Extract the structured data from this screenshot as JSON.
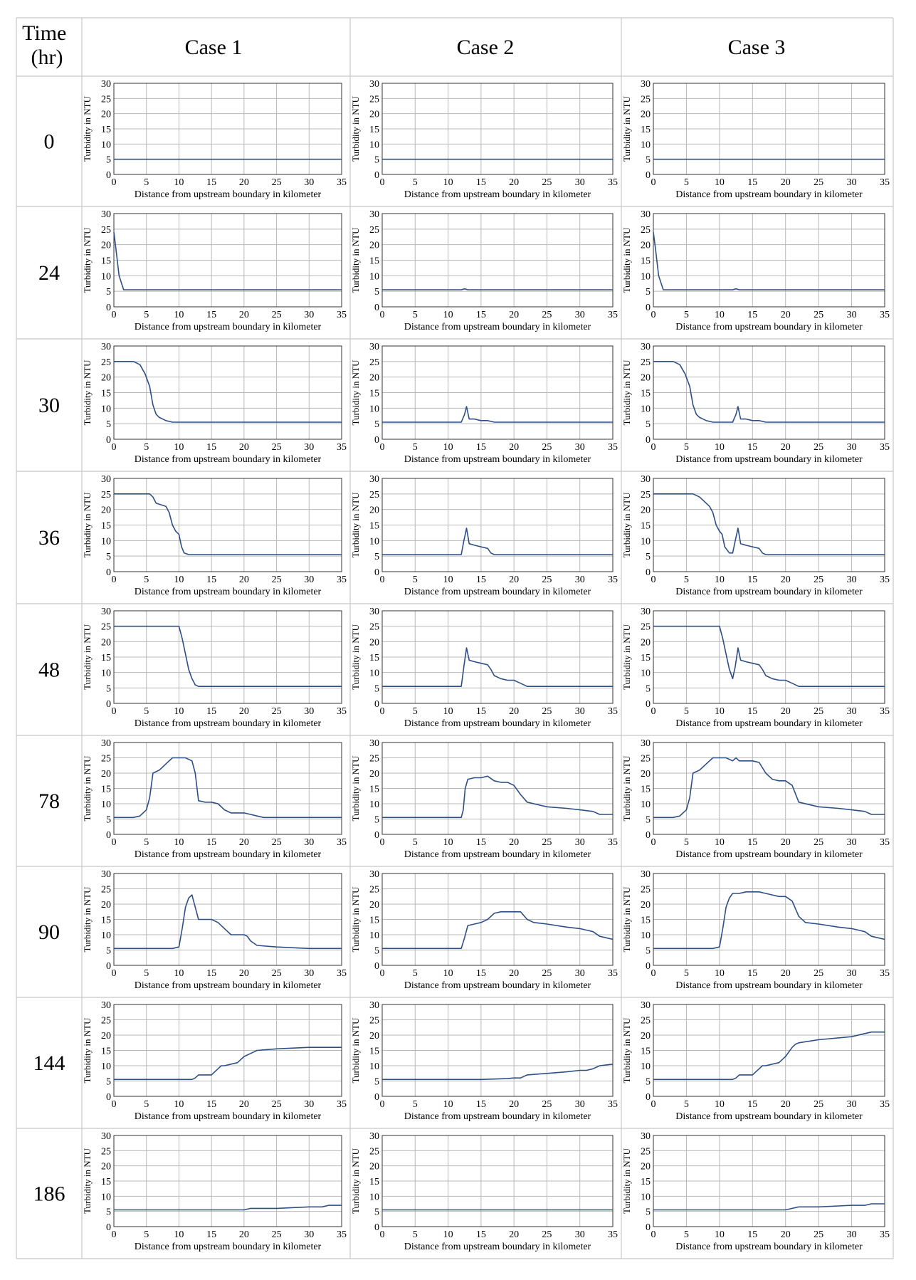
{
  "table": {
    "time_header": "Time (hr)",
    "time_header_lines": [
      "Time",
      "(hr)"
    ],
    "cases": [
      "Case 1",
      "Case 2",
      "Case 3"
    ],
    "times": [
      "0",
      "24",
      "30",
      "36",
      "48",
      "78",
      "90",
      "144",
      "186"
    ]
  },
  "colors": {
    "line": "#2e4f86",
    "grid": "#b8b8b8",
    "axis": "#333333",
    "border": "#c8c8c8"
  },
  "chart_data": {
    "type": "line",
    "xlabel": "Distance from upstream boundary in kilometer",
    "ylabel": "Turbidity in NTU",
    "xlim": [
      0,
      35
    ],
    "ylim": [
      0,
      30
    ],
    "xticks": [
      0,
      5,
      10,
      15,
      20,
      25,
      30,
      35
    ],
    "yticks": [
      0,
      5,
      10,
      15,
      20,
      25,
      30
    ],
    "grid": true,
    "panels": [
      [
        {
          "x": [
            0,
            35
          ],
          "y": [
            5,
            5
          ]
        },
        {
          "x": [
            0,
            0.3,
            0.8,
            1.5,
            35
          ],
          "y": [
            24,
            19,
            10,
            5.5,
            5.5
          ]
        },
        {
          "x": [
            0,
            3,
            4,
            4.8,
            5.5,
            6,
            6.5,
            7,
            8,
            9,
            10,
            35
          ],
          "y": [
            25,
            25,
            24,
            21,
            17,
            11,
            8,
            7,
            6,
            5.5,
            5.5,
            5.5
          ]
        },
        {
          "x": [
            0,
            5.5,
            6,
            6.5,
            8,
            8.5,
            9,
            9.5,
            10,
            10.4,
            10.8,
            11.5,
            35
          ],
          "y": [
            25,
            25,
            24,
            22,
            21,
            19,
            15,
            13,
            12,
            8,
            6,
            5.5,
            5.5
          ]
        },
        {
          "x": [
            0,
            10,
            10.5,
            11,
            11.5,
            12,
            12.5,
            13,
            35
          ],
          "y": [
            25,
            25,
            21,
            16,
            11,
            8,
            6,
            5.5,
            5.5
          ]
        },
        {
          "x": [
            0,
            3,
            4,
            5,
            5.5,
            6,
            7,
            8,
            9,
            10,
            11,
            12,
            12.5,
            13,
            14,
            15,
            16,
            17,
            18,
            20,
            21,
            22,
            23,
            35
          ],
          "y": [
            5.5,
            5.5,
            6,
            8,
            12,
            20,
            21,
            23,
            25,
            25,
            25,
            24,
            20,
            11,
            10.5,
            10.5,
            10,
            8,
            7,
            7,
            6.5,
            6,
            5.5,
            5.5
          ]
        },
        {
          "x": [
            0,
            9,
            10,
            10.5,
            11,
            11.5,
            12,
            12.5,
            13,
            14,
            15,
            16,
            17,
            18,
            19,
            20,
            20.5,
            21,
            22,
            25,
            30,
            35
          ],
          "y": [
            5.5,
            5.5,
            6,
            12,
            19,
            22,
            23,
            19,
            15,
            15,
            15,
            14,
            12,
            10,
            10,
            10,
            9.5,
            8,
            6.5,
            6,
            5.5,
            5.5
          ]
        },
        {
          "x": [
            0,
            12,
            12.5,
            13,
            14,
            15,
            15.5,
            16,
            16.5,
            17,
            18,
            19,
            20,
            21,
            21.5,
            22,
            25,
            30,
            35
          ],
          "y": [
            5.5,
            5.5,
            6,
            7,
            7,
            7,
            8,
            9,
            10,
            10,
            10.5,
            11,
            13,
            14,
            14.5,
            15,
            15.5,
            16,
            16
          ]
        },
        {
          "x": [
            0,
            10,
            15,
            20,
            21,
            25,
            30,
            32,
            33,
            35
          ],
          "y": [
            5.5,
            5.5,
            5.5,
            5.5,
            6,
            6,
            6.5,
            6.5,
            7,
            7
          ]
        }
      ],
      [
        {
          "x": [
            0,
            35
          ],
          "y": [
            5,
            5
          ]
        },
        {
          "x": [
            0,
            12,
            12.5,
            13,
            35
          ],
          "y": [
            5.5,
            5.5,
            5.8,
            5.5,
            5.5
          ]
        },
        {
          "x": [
            0,
            12,
            12.5,
            12.8,
            13.2,
            14,
            15,
            16,
            17,
            35
          ],
          "y": [
            5.5,
            5.5,
            8,
            10.5,
            6.5,
            6.5,
            6,
            6,
            5.5,
            5.5
          ]
        },
        {
          "x": [
            0,
            12,
            12.4,
            12.8,
            13.2,
            14,
            15,
            16,
            16.5,
            17,
            35
          ],
          "y": [
            5.5,
            5.5,
            10,
            14,
            9,
            8.5,
            8,
            7.5,
            6,
            5.5,
            5.5
          ]
        },
        {
          "x": [
            0,
            12,
            12.4,
            12.8,
            13.2,
            14,
            15,
            16,
            16.5,
            17,
            18,
            19,
            20,
            20.5,
            21,
            22,
            35
          ],
          "y": [
            5.5,
            5.5,
            12,
            18,
            14,
            13.5,
            13,
            12.5,
            11,
            9,
            8,
            7.5,
            7.5,
            7,
            6.5,
            5.5,
            5.5
          ]
        },
        {
          "x": [
            0,
            12,
            12.3,
            12.6,
            13,
            14,
            15,
            16,
            17,
            18,
            19,
            20,
            21,
            22,
            25,
            28,
            30,
            32,
            33,
            35
          ],
          "y": [
            5.5,
            5.5,
            8,
            15,
            18,
            18.5,
            18.5,
            19,
            17.5,
            17,
            17,
            16,
            13,
            10.5,
            9,
            8.5,
            8,
            7.5,
            6.5,
            6.5
          ]
        },
        {
          "x": [
            0,
            12,
            12.5,
            13,
            14,
            15,
            16,
            17,
            18,
            19,
            20,
            21,
            22,
            23,
            25,
            28,
            30,
            31,
            32,
            33,
            34,
            35
          ],
          "y": [
            5.5,
            5.5,
            9,
            13,
            13.5,
            14,
            15,
            17,
            17.5,
            17.5,
            17.5,
            17.5,
            15,
            14,
            13.5,
            12.5,
            12,
            11.5,
            11,
            9.5,
            9,
            8.5
          ]
        },
        {
          "x": [
            0,
            10,
            15,
            19,
            20,
            21,
            22,
            25,
            28,
            30,
            31,
            32,
            33,
            35
          ],
          "y": [
            5.5,
            5.5,
            5.5,
            5.8,
            6,
            6,
            7,
            7.5,
            8,
            8.5,
            8.5,
            9,
            10,
            10.5
          ]
        },
        {
          "x": [
            0,
            35
          ],
          "y": [
            5.5,
            5.5
          ]
        }
      ],
      [
        {
          "x": [
            0,
            35
          ],
          "y": [
            5,
            5
          ]
        },
        {
          "x": [
            0,
            0.3,
            0.8,
            1.5,
            12,
            12.5,
            13,
            35
          ],
          "y": [
            24,
            19,
            10,
            5.5,
            5.5,
            5.8,
            5.5,
            5.5
          ]
        },
        {
          "x": [
            0,
            3,
            4,
            4.8,
            5.5,
            6,
            6.5,
            7,
            8,
            9,
            10,
            12,
            12.5,
            12.8,
            13.2,
            14,
            15,
            16,
            17,
            35
          ],
          "y": [
            25,
            25,
            24,
            21,
            17,
            11,
            8,
            7,
            6,
            5.5,
            5.5,
            5.5,
            8,
            10.5,
            6.5,
            6.5,
            6,
            6,
            5.5,
            5.5
          ]
        },
        {
          "x": [
            0,
            6,
            7,
            8,
            8.5,
            9,
            9.5,
            10,
            10.4,
            10.8,
            11.5,
            12,
            12.4,
            12.8,
            13.2,
            14,
            15,
            16,
            16.5,
            17,
            35
          ],
          "y": [
            25,
            25,
            24,
            22,
            21,
            19,
            15,
            13,
            12,
            8,
            6,
            6,
            10,
            14,
            9,
            8.5,
            8,
            7.5,
            6,
            5.5,
            5.5
          ]
        },
        {
          "x": [
            0,
            10,
            10.5,
            11,
            11.5,
            12,
            12.4,
            12.8,
            13.2,
            14,
            15,
            16,
            16.5,
            17,
            18,
            19,
            20,
            20.5,
            21,
            22,
            35
          ],
          "y": [
            25,
            25,
            21,
            16,
            11,
            8,
            12,
            18,
            14,
            13.5,
            13,
            12.5,
            11,
            9,
            8,
            7.5,
            7.5,
            7,
            6.5,
            5.5,
            5.5
          ]
        },
        {
          "x": [
            0,
            3,
            4,
            5,
            5.5,
            6,
            7,
            8,
            9,
            10,
            11,
            12,
            12.5,
            13,
            14,
            15,
            16,
            17,
            18,
            19,
            20,
            21,
            22,
            25,
            28,
            30,
            32,
            33,
            35
          ],
          "y": [
            5.5,
            5.5,
            6,
            8,
            12,
            20,
            21,
            23,
            25,
            25,
            25,
            24,
            25,
            24,
            24,
            24,
            23.5,
            20,
            18,
            17.5,
            17.5,
            16,
            10.5,
            9,
            8.5,
            8,
            7.5,
            6.5,
            6.5
          ]
        },
        {
          "x": [
            0,
            9,
            10,
            10.5,
            11,
            11.5,
            12,
            13,
            14,
            15,
            16,
            17,
            18,
            19,
            20,
            21,
            22,
            23,
            25,
            28,
            30,
            31,
            32,
            33,
            34,
            35
          ],
          "y": [
            5.5,
            5.5,
            6,
            12,
            19,
            22,
            23.5,
            23.5,
            24,
            24,
            24,
            23.5,
            23,
            22.5,
            22.5,
            21,
            16,
            14,
            13.5,
            12.5,
            12,
            11.5,
            11,
            9.5,
            9,
            8.5
          ]
        },
        {
          "x": [
            0,
            12,
            12.5,
            13,
            14,
            15,
            15.5,
            16,
            16.5,
            17,
            18,
            19,
            20,
            21,
            21.5,
            22,
            25,
            30,
            32,
            33,
            35
          ],
          "y": [
            5.5,
            5.5,
            6,
            7,
            7,
            7,
            8,
            9,
            10,
            10,
            10.5,
            11,
            13,
            16,
            17,
            17.5,
            18.5,
            19.5,
            20.5,
            21,
            21
          ]
        },
        {
          "x": [
            0,
            10,
            15,
            20,
            21,
            22,
            25,
            28,
            30,
            32,
            33,
            34,
            35
          ],
          "y": [
            5.5,
            5.5,
            5.5,
            5.5,
            6,
            6.5,
            6.5,
            6.8,
            7,
            7,
            7.5,
            7.5,
            7.5
          ]
        }
      ]
    ]
  }
}
